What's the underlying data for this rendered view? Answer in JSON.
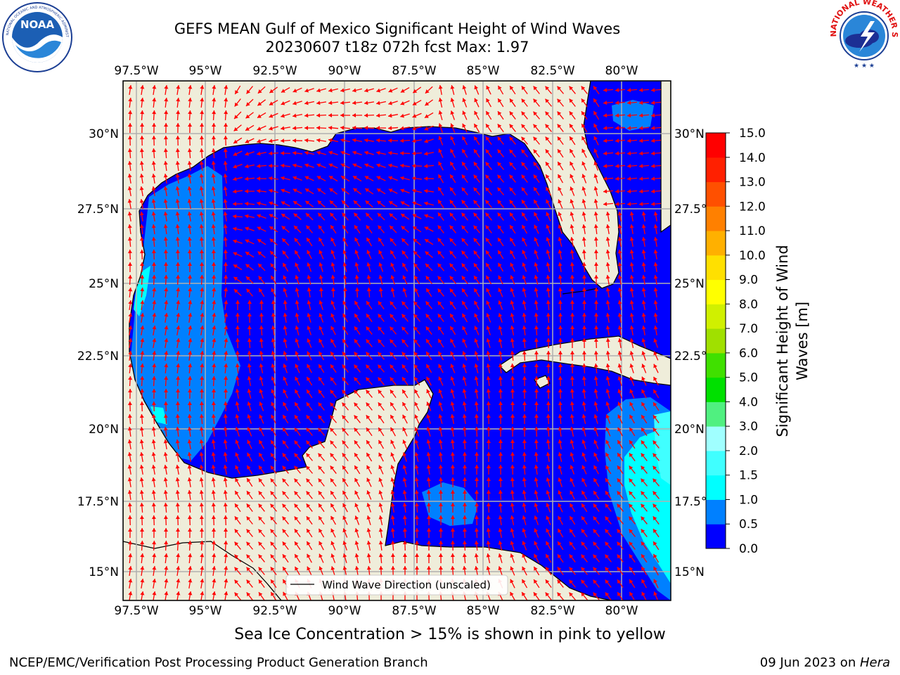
{
  "header": {
    "title_line1": "GEFS MEAN Gulf of Mexico Significant Height of Wind Waves",
    "title_line2": "20230607 t18z 072h fcst   Max: 1.97"
  },
  "logos": {
    "left": {
      "name": "noaa-logo",
      "text": "NOAA",
      "ring_text": "NATIONAL OCEANIC AND ATMOSPHERIC ADMINISTRATION · U.S. DEPARTMENT OF COMMERCE"
    },
    "right": {
      "name": "nws-logo",
      "ring_text": "NATIONAL WEATHER SERVICE"
    }
  },
  "map": {
    "lon_labels": [
      "97.5°W",
      "95°W",
      "92.5°W",
      "90°W",
      "87.5°W",
      "85°W",
      "82.5°W",
      "80°W"
    ],
    "lat_labels": [
      "30°N",
      "27.5°N",
      "25°N",
      "22.5°N",
      "20°N",
      "17.5°N",
      "15°N"
    ],
    "legend_label": "Wind Wave Direction (unscaled)",
    "arrow_color": "#ff0000",
    "land_color": "#efedda",
    "sea_base_color": "#0000ff"
  },
  "colorbar": {
    "label": "Significant Height of Wind Waves [m]",
    "ticks": [
      "0.0",
      "0.5",
      "1.0",
      "1.5",
      "2.0",
      "3.0",
      "4.0",
      "5.0",
      "6.0",
      "7.0",
      "8.0",
      "9.0",
      "10.0",
      "11.0",
      "12.0",
      "13.0",
      "14.0",
      "15.0"
    ],
    "colors": [
      "#0000ff",
      "#0080ff",
      "#00ffff",
      "#40ffff",
      "#a0ffff",
      "#50f080",
      "#00e000",
      "#40e000",
      "#a0e000",
      "#d0f000",
      "#ffff00",
      "#ffe000",
      "#ffb000",
      "#ff8000",
      "#ff5000",
      "#ff2000",
      "#ff0000"
    ]
  },
  "footer": {
    "ice_note": "Sea Ice Concentration > 15% is shown in pink to yellow",
    "credit": "NCEP/EMC/Verification Post Processing Product Generation Branch",
    "date": "09 Jun 2023 on ",
    "host": "Hera"
  }
}
